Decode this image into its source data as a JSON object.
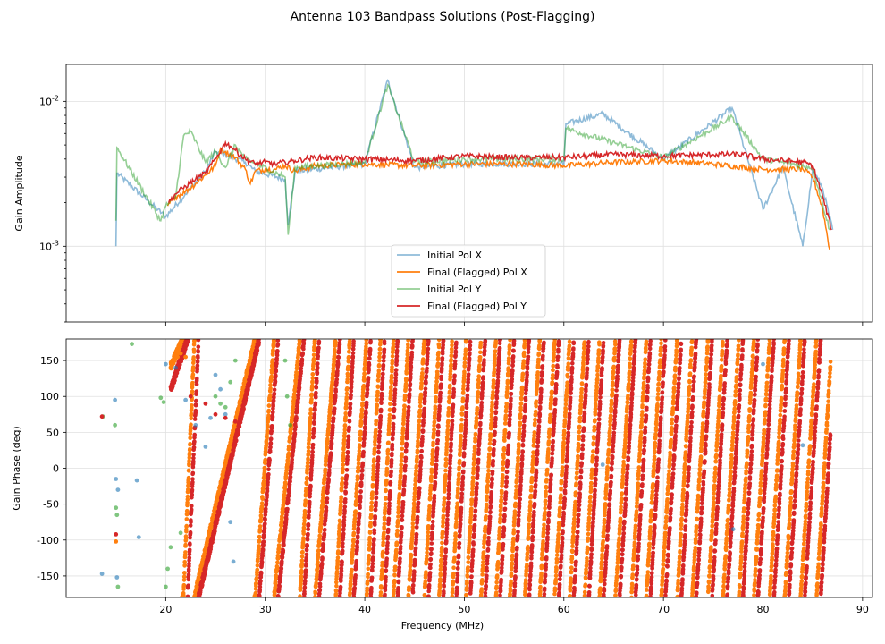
{
  "figure": {
    "suptitle": "Antenna 103 Bandpass Solutions (Post-Flagging)"
  },
  "colors": {
    "initial_x": "#1f77b4",
    "final_x": "#ff7f0e",
    "initial_y": "#2ca02c",
    "final_y": "#d62728"
  },
  "chart_data": [
    {
      "type": "line",
      "panel": "amplitude",
      "title": "",
      "xlabel": "",
      "ylabel": "Gain Amplitude",
      "yscale": "log",
      "xlim": [
        10,
        91
      ],
      "ylim": [
        0.0003,
        0.018
      ],
      "ytick_labels": [
        "10^-3",
        "10^-2"
      ],
      "grid": true,
      "legend": {
        "placement": "lower-center",
        "entries": [
          "Initial Pol X",
          "Final (Flagged) Pol X",
          "Initial Pol Y",
          "Final (Flagged) Pol Y"
        ]
      },
      "series": [
        {
          "name": "Initial Pol X",
          "color": "#1f77b4",
          "alpha": 0.5,
          "x": [
            15.0,
            15.1,
            20,
            22,
            24,
            25,
            26,
            28,
            29,
            32,
            32.3,
            33,
            40,
            42.3,
            45,
            50,
            60,
            60.2,
            63.9,
            70,
            76.9,
            80,
            82,
            84,
            85,
            86,
            87
          ],
          "y": [
            0.001,
            0.0032,
            0.0016,
            0.0023,
            0.0033,
            0.0045,
            0.0043,
            0.0038,
            0.0033,
            0.0029,
            0.0014,
            0.0033,
            0.0037,
            0.014,
            0.0035,
            0.0037,
            0.0037,
            0.007,
            0.0082,
            0.004,
            0.009,
            0.0018,
            0.0035,
            0.001,
            0.0034,
            0.0025,
            0.0013
          ]
        },
        {
          "name": "Final (Flagged) Pol X",
          "color": "#ff7f0e",
          "alpha": 1.0,
          "x": [
            20.2,
            21,
            22,
            23,
            24,
            25,
            25.5,
            26,
            27,
            28,
            28.5,
            29,
            30,
            31,
            32,
            33,
            35,
            40,
            45,
            50,
            55,
            60,
            65,
            70,
            75,
            80,
            84,
            85,
            86,
            86.7
          ],
          "y": [
            0.0019,
            0.0022,
            0.0024,
            0.0027,
            0.0031,
            0.0036,
            0.0047,
            0.0045,
            0.0041,
            0.0034,
            0.0027,
            0.0033,
            0.0034,
            0.0034,
            0.0036,
            0.0033,
            0.0036,
            0.0037,
            0.0036,
            0.0037,
            0.0037,
            0.0036,
            0.0038,
            0.0039,
            0.0037,
            0.0034,
            0.0034,
            0.003,
            0.0018,
            0.00095
          ]
        },
        {
          "name": "Initial Pol Y",
          "color": "#2ca02c",
          "alpha": 0.5,
          "x": [
            15.0,
            15.1,
            19.5,
            20,
            21,
            21.8,
            22.5,
            24,
            25,
            26,
            27,
            28,
            32,
            32.3,
            33,
            40,
            42.3,
            45,
            50,
            60,
            60.2,
            70,
            76.9,
            80,
            85,
            86.7
          ],
          "y": [
            0.0015,
            0.0048,
            0.0015,
            0.0019,
            0.0022,
            0.0058,
            0.0062,
            0.0038,
            0.0045,
            0.0035,
            0.005,
            0.004,
            0.003,
            0.0012,
            0.0035,
            0.0038,
            0.013,
            0.0038,
            0.004,
            0.004,
            0.0065,
            0.0041,
            0.0078,
            0.004,
            0.0035,
            0.0013
          ]
        },
        {
          "name": "Final (Flagged) Pol Y",
          "color": "#d62728",
          "alpha": 1.0,
          "x": [
            20.3,
            21,
            22,
            23,
            24,
            25,
            26,
            26.5,
            27,
            28,
            29,
            30,
            31,
            32,
            33,
            34,
            35,
            40,
            45,
            50,
            55,
            60,
            65,
            70,
            75,
            78,
            80,
            84,
            85,
            86,
            86.9
          ],
          "y": [
            0.002,
            0.0023,
            0.0026,
            0.0029,
            0.0032,
            0.004,
            0.0052,
            0.0049,
            0.0046,
            0.004,
            0.0037,
            0.0038,
            0.0037,
            0.0038,
            0.0039,
            0.004,
            0.0041,
            0.004,
            0.0039,
            0.0042,
            0.0041,
            0.0041,
            0.0043,
            0.0042,
            0.0043,
            0.0043,
            0.004,
            0.0038,
            0.0036,
            0.0022,
            0.0013
          ]
        }
      ]
    },
    {
      "type": "scatter",
      "panel": "phase",
      "title": "",
      "xlabel": "Frequency (MHz)",
      "ylabel": "Gain Phase (deg)",
      "xlim": [
        10,
        91
      ],
      "ylim": [
        -180,
        180
      ],
      "xticks": [
        20,
        30,
        40,
        50,
        60,
        70,
        80,
        90
      ],
      "yticks": [
        -150,
        -100,
        -50,
        0,
        50,
        100,
        150
      ],
      "grid": true,
      "phase_wrap": {
        "description": "Final solutions follow a linear phase slope wrapping from -180 to 180 deg",
        "final_start_mhz": 20.5,
        "final_end_mhz": 86.8,
        "wrap_crossings_mhz": [
          22.2,
          23.3,
          29.4,
          31.3,
          33.9,
          35.4,
          37.5,
          38.9,
          40.6,
          42.0,
          43.3,
          44.8,
          46.4,
          47.9,
          49.2,
          50.6,
          52.1,
          53.6,
          55.0,
          56.5,
          58.0,
          59.5,
          61.0,
          62.5,
          64.0,
          65.6,
          67.2,
          68.7,
          70.2,
          71.8,
          73.3,
          74.9,
          76.4,
          78.0,
          79.5,
          81.1,
          82.6,
          84.2,
          85.8
        ],
        "final_x_phase_at_start_deg": 130,
        "final_y_phase_at_start_deg": 110
      },
      "series": [
        {
          "name": "Initial Pol X",
          "color": "#1f77b4",
          "points": [
            [
              13.6,
              -147
            ],
            [
              14.9,
              95
            ],
            [
              15.0,
              -15
            ],
            [
              15.1,
              -152
            ],
            [
              15.2,
              -30
            ],
            [
              17.1,
              -17
            ],
            [
              17.3,
              -96
            ],
            [
              20.0,
              145
            ],
            [
              21.0,
              140
            ],
            [
              22.0,
              95
            ],
            [
              23.0,
              60
            ],
            [
              24.0,
              30
            ],
            [
              24.5,
              70
            ],
            [
              25.0,
              130
            ],
            [
              25.5,
              110
            ],
            [
              26.0,
              75
            ],
            [
              26.5,
              -75
            ],
            [
              26.8,
              -130
            ],
            [
              63.9,
              5
            ],
            [
              77.0,
              -85
            ],
            [
              80.0,
              145
            ],
            [
              84.0,
              32
            ]
          ]
        },
        {
          "name": "Final (Flagged) Pol X",
          "color": "#ff7f0e",
          "points": [
            [
              15.0,
              -102
            ],
            [
              20.8,
              150
            ],
            [
              21.2,
              155
            ],
            [
              21.5,
              160
            ],
            [
              22.0,
              155
            ]
          ]
        },
        {
          "name": "Initial Pol Y",
          "color": "#2ca02c",
          "points": [
            [
              13.7,
              72
            ],
            [
              14.9,
              60
            ],
            [
              15.0,
              -55
            ],
            [
              15.1,
              -65
            ],
            [
              15.2,
              -165
            ],
            [
              16.6,
              173
            ],
            [
              19.5,
              98
            ],
            [
              19.8,
              92
            ],
            [
              20.0,
              -165
            ],
            [
              20.2,
              -140
            ],
            [
              20.5,
              -110
            ],
            [
              21.5,
              -90
            ],
            [
              25.0,
              100
            ],
            [
              25.5,
              90
            ],
            [
              26.0,
              85
            ],
            [
              26.5,
              120
            ],
            [
              27.0,
              150
            ],
            [
              32.0,
              150
            ],
            [
              32.2,
              100
            ],
            [
              32.5,
              60
            ]
          ]
        },
        {
          "name": "Final (Flagged) Pol Y",
          "color": "#d62728",
          "points": [
            [
              13.6,
              72
            ],
            [
              15.0,
              -92
            ],
            [
              22.5,
              100
            ],
            [
              24.0,
              90
            ],
            [
              25.0,
              75
            ],
            [
              26.0,
              70
            ],
            [
              27.0,
              65
            ]
          ]
        }
      ]
    }
  ]
}
